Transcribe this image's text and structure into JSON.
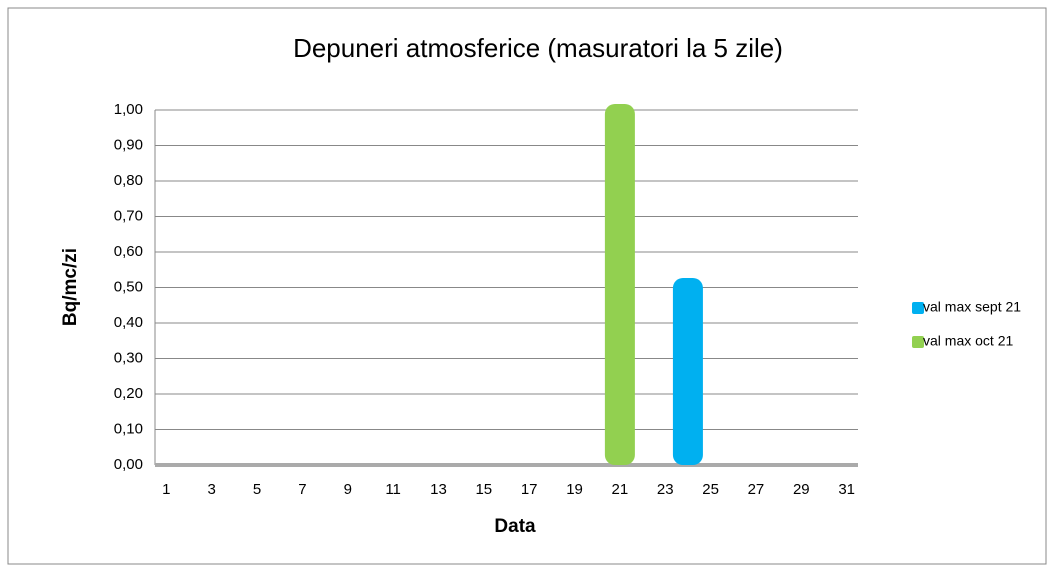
{
  "chart_data": {
    "type": "bar",
    "title": "Depuneri atmosferice (masuratori la 5 zile)",
    "x_label": "Data",
    "y_label": "Bq/mc/zi",
    "categories": [
      "1",
      null,
      "3",
      null,
      "5",
      null,
      "7",
      null,
      "9",
      null,
      "11",
      null,
      "13",
      null,
      "15",
      null,
      "17",
      null,
      "19",
      null,
      "21",
      null,
      "23",
      null,
      "25",
      null,
      "27",
      null,
      "29",
      null,
      "31"
    ],
    "series": [
      {
        "name": "val max sept 21",
        "color": "#00b0f0",
        "values": [
          0,
          0,
          0,
          0,
          0,
          0,
          0,
          0,
          0,
          0,
          0,
          0,
          0,
          0,
          0,
          0,
          0,
          0,
          0,
          0,
          0,
          0,
          0,
          0.51,
          0,
          0,
          0,
          0,
          0,
          0,
          0
        ]
      },
      {
        "name": "val max oct 21",
        "color": "#92d050",
        "values": [
          0,
          0,
          0,
          0,
          0,
          0,
          0,
          0,
          0,
          0,
          0,
          0,
          0,
          0,
          0,
          0,
          0,
          0,
          0,
          0,
          1.0,
          0,
          0,
          0,
          0,
          0,
          0,
          0,
          0,
          0,
          0
        ]
      }
    ],
    "ylim": [
      0,
      1
    ],
    "yticks": [
      {
        "value": 0,
        "label": "0,00"
      },
      {
        "value": 0.1,
        "label": "0,10"
      },
      {
        "value": 0.2,
        "label": "0,20"
      },
      {
        "value": 0.3,
        "label": "0,30"
      },
      {
        "value": 0.4,
        "label": "0,40"
      },
      {
        "value": 0.5,
        "label": "0,50"
      },
      {
        "value": 0.6,
        "label": "0,60"
      },
      {
        "value": 0.7,
        "label": "0,70"
      },
      {
        "value": 0.8,
        "label": "0,80"
      },
      {
        "value": 0.9,
        "label": "0,90"
      },
      {
        "value": 1,
        "label": "1,00"
      }
    ],
    "grid": true,
    "legend": "right"
  }
}
